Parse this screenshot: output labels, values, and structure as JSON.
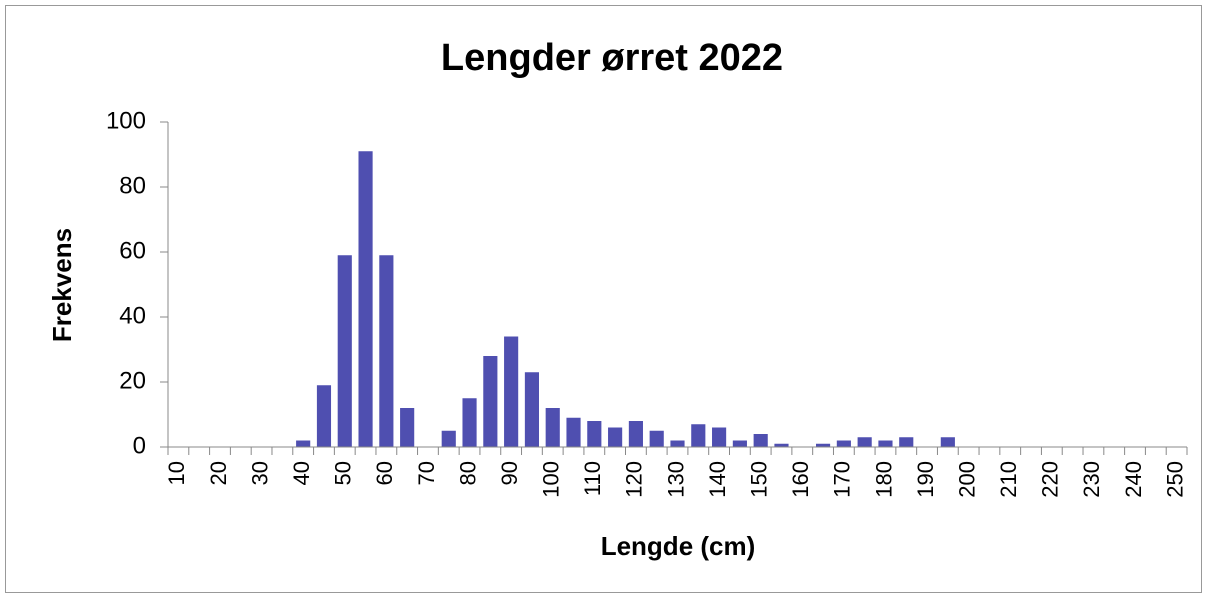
{
  "chart_data": {
    "type": "bar",
    "title": "Lengder ørret 2022",
    "x_label": "Lengde (cm)",
    "y_label": "Frekvens",
    "categories": [
      "10",
      null,
      "20",
      null,
      "30",
      null,
      "40",
      null,
      "50",
      null,
      "60",
      null,
      "70",
      null,
      "80",
      null,
      "90",
      null,
      "100",
      null,
      "110",
      null,
      "120",
      null,
      "130",
      null,
      "140",
      null,
      "150",
      null,
      "160",
      null,
      "170",
      null,
      "180",
      null,
      "190",
      null,
      "200",
      null,
      "210",
      null,
      "220",
      null,
      "230",
      null,
      "240",
      null,
      "250"
    ],
    "values": [
      0,
      0,
      0,
      0,
      0,
      0,
      2,
      19,
      59,
      91,
      59,
      12,
      0,
      5,
      15,
      28,
      34,
      23,
      12,
      9,
      8,
      6,
      8,
      5,
      2,
      7,
      6,
      2,
      4,
      1,
      0,
      1,
      2,
      3,
      2,
      3,
      0,
      3,
      0,
      0,
      0,
      0,
      0,
      0,
      0,
      0,
      0,
      0,
      0
    ],
    "color": "#4f4fb0",
    "ylim": [
      0,
      100
    ],
    "yticks": [
      0,
      20,
      40,
      60,
      80,
      100
    ],
    "grid": false
  }
}
